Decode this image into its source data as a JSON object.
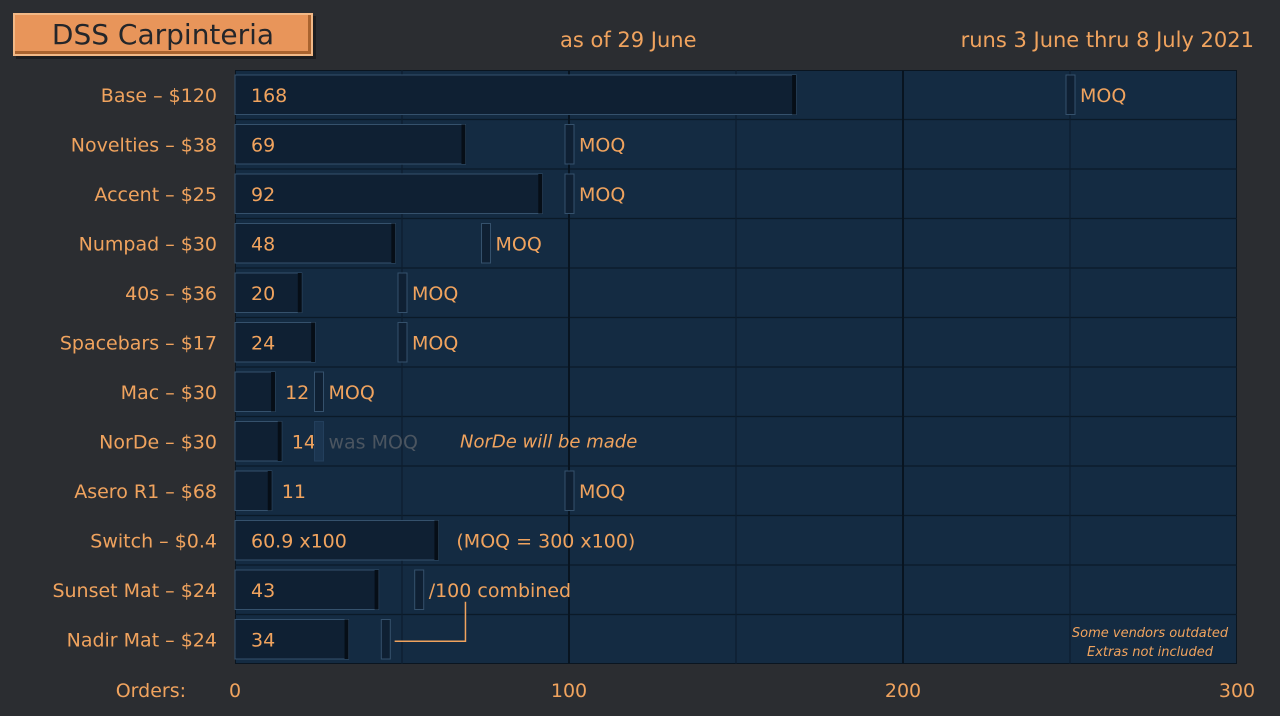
{
  "header": {
    "title": "DSS Carpinteria",
    "as_of": "as of 29 June",
    "runs": "runs 3 June thru 8 July 2021"
  },
  "colors": {
    "background": "#2b2d31",
    "plot_bg": "#142b42",
    "bar": "#0f2033",
    "bar_edge": "#35516c",
    "text": "#f0a35e",
    "title_bg": "#e8955a",
    "faded_text": "#4b5560"
  },
  "x_axis_prefix": "Orders:",
  "chart_data": {
    "type": "bar",
    "orientation": "horizontal",
    "categories": [
      "Base – $120",
      "Novelties – $38",
      "Accent – $25",
      "Numpad – $30",
      "40s – $36",
      "Spacebars – $17",
      "Mac – $30",
      "NorDe – $30",
      "Asero R1 – $68",
      "Switch – $0.4",
      "Sunset Mat – $24",
      "Nadir Mat – $24"
    ],
    "values": [
      168,
      69,
      92,
      48,
      20,
      24,
      12,
      14,
      11,
      60.9,
      43,
      34
    ],
    "value_labels": [
      "168",
      "69",
      "92",
      "48",
      "20",
      "24",
      "12",
      "14",
      "11",
      "60.9 x100",
      "43",
      "34"
    ],
    "moq": [
      250,
      100,
      100,
      75,
      50,
      50,
      25,
      25,
      100,
      null,
      55,
      45
    ],
    "moq_labels": [
      "MOQ",
      "MOQ",
      "MOQ",
      "MOQ",
      "MOQ",
      "MOQ",
      "MOQ",
      "was MOQ",
      "MOQ",
      "(MOQ = 300 x100)",
      "/100 combined",
      ""
    ],
    "annotation": "NorDe will be made",
    "footnote_lines": [
      "Some vendors outdated",
      "Extras not included"
    ],
    "xlim": [
      0,
      300
    ],
    "xticks": [
      0,
      100,
      200,
      300
    ],
    "grid": true
  }
}
